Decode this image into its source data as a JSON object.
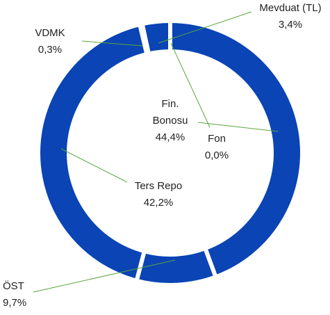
{
  "chart_data": {
    "type": "donut",
    "categories": [
      "Fin. Bonosu",
      "Fon",
      "ÖST",
      "Ters Repo",
      "VDMK",
      "Mevduat (TL)"
    ],
    "values": [
      44.4,
      0.0,
      9.7,
      42.2,
      0.3,
      3.4
    ],
    "value_labels": [
      "44,4%",
      "0,0%",
      "9,7%",
      "42,2%",
      "0,3%",
      "3,4%"
    ],
    "color": "#0a44b5",
    "leader_color": "#5aa53c"
  }
}
